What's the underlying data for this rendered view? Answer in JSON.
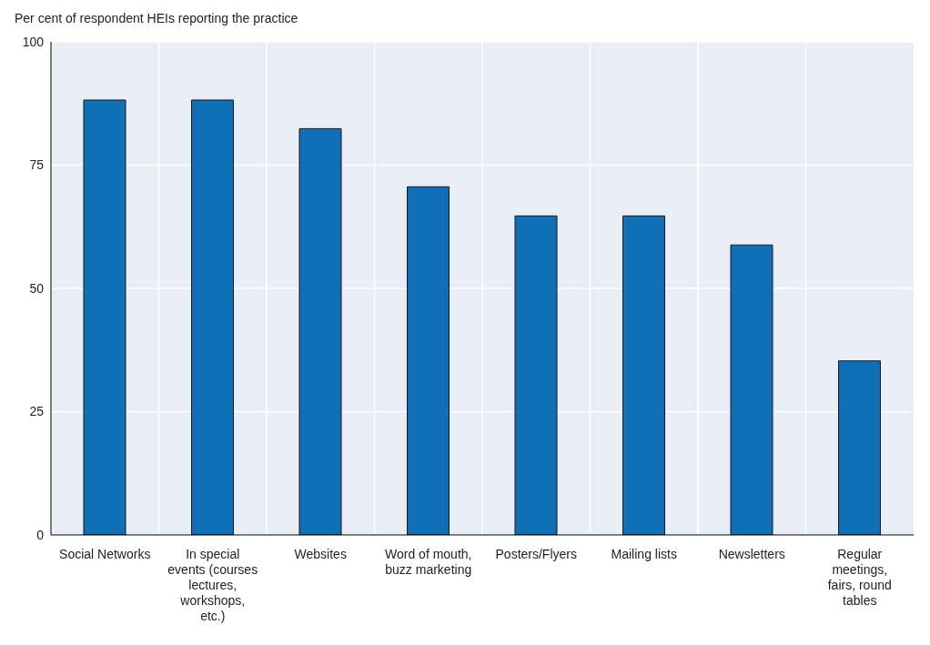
{
  "chart_data": {
    "type": "bar",
    "ylabel": "Per cent of respondent HEIs reporting the practice",
    "categories": [
      "Social Networks",
      "In special events (courses lectures, workshops, etc.)",
      "Websites",
      "Word of mouth, buzz marketing",
      "Posters/Flyers",
      "Mailing lists",
      "Newsletters",
      "Regular meetings, fairs, round tables"
    ],
    "values": [
      88.2,
      88.2,
      82.4,
      70.6,
      64.7,
      64.7,
      58.8,
      35.3
    ],
    "color": "#0f6fb7",
    "ylim": [
      0,
      100
    ],
    "yticks": [
      0,
      25,
      50,
      75,
      100
    ],
    "grid": true
  }
}
